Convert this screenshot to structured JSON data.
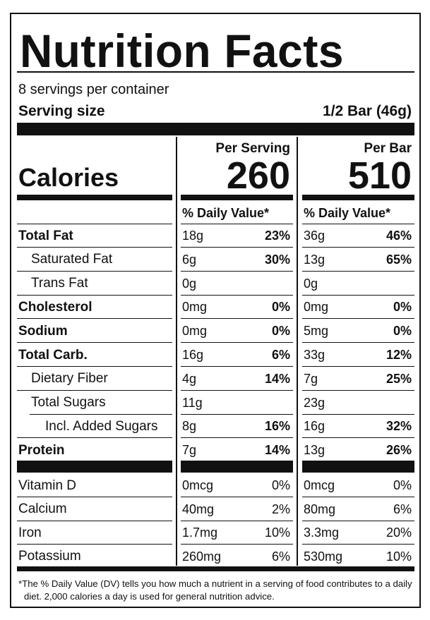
{
  "title": "Nutrition Facts",
  "servings": "8 servings per container",
  "serving_size": {
    "label": "Serving size",
    "value": "1/2 Bar (46g)"
  },
  "calories": {
    "label": "Calories",
    "per_serving_header": "Per Serving",
    "per_serving": "260",
    "per_bar_header": "Per Bar",
    "per_bar": "510"
  },
  "daily_value_header": "% Daily Value*",
  "nutrients": [
    {
      "name": "Total Fat",
      "per_serving": {
        "amount": "18g",
        "dv": "23%"
      },
      "per_bar": {
        "amount": "36g",
        "dv": "46%"
      }
    },
    {
      "name": "Saturated Fat",
      "per_serving": {
        "amount": "6g",
        "dv": "30%"
      },
      "per_bar": {
        "amount": "13g",
        "dv": "65%"
      }
    },
    {
      "name": "Trans Fat",
      "per_serving": {
        "amount": "0g"
      },
      "per_bar": {
        "amount": "0g"
      }
    },
    {
      "name": "Cholesterol",
      "per_serving": {
        "amount": "0mg",
        "dv": "0%"
      },
      "per_bar": {
        "amount": "0mg",
        "dv": "0%"
      }
    },
    {
      "name": "Sodium",
      "per_serving": {
        "amount": "0mg",
        "dv": "0%"
      },
      "per_bar": {
        "amount": "5mg",
        "dv": "0%"
      }
    },
    {
      "name": "Total Carb.",
      "per_serving": {
        "amount": "16g",
        "dv": "6%"
      },
      "per_bar": {
        "amount": "33g",
        "dv": "12%"
      }
    },
    {
      "name": "Dietary Fiber",
      "per_serving": {
        "amount": "4g",
        "dv": "14%"
      },
      "per_bar": {
        "amount": "7g",
        "dv": "25%"
      }
    },
    {
      "name": "Total Sugars",
      "per_serving": {
        "amount": "11g"
      },
      "per_bar": {
        "amount": "23g"
      }
    },
    {
      "name": "Incl. Added Sugars",
      "per_serving": {
        "amount": "8g",
        "dv": "16%"
      },
      "per_bar": {
        "amount": "16g",
        "dv": "32%"
      }
    },
    {
      "name": "Protein",
      "per_serving": {
        "amount": "7g",
        "dv": "14%"
      },
      "per_bar": {
        "amount": "13g",
        "dv": "26%"
      }
    }
  ],
  "vitamins": [
    {
      "name": "Vitamin D",
      "per_serving": {
        "amount": "0mcg",
        "dv": "0%"
      },
      "per_bar": {
        "amount": "0mcg",
        "dv": "0%"
      }
    },
    {
      "name": "Calcium",
      "per_serving": {
        "amount": "40mg",
        "dv": "2%"
      },
      "per_bar": {
        "amount": "80mg",
        "dv": "6%"
      }
    },
    {
      "name": "Iron",
      "per_serving": {
        "amount": "1.7mg",
        "dv": "10%"
      },
      "per_bar": {
        "amount": "3.3mg",
        "dv": "20%"
      }
    },
    {
      "name": "Potassium",
      "per_serving": {
        "amount": "260mg",
        "dv": "6%"
      },
      "per_bar": {
        "amount": "530mg",
        "dv": "10%"
      }
    }
  ],
  "footnote": "*The % Daily Value (DV) tells you how much a nutrient in a serving of food contributes to a daily diet. 2,000 calories a day is used for general nutrition advice."
}
